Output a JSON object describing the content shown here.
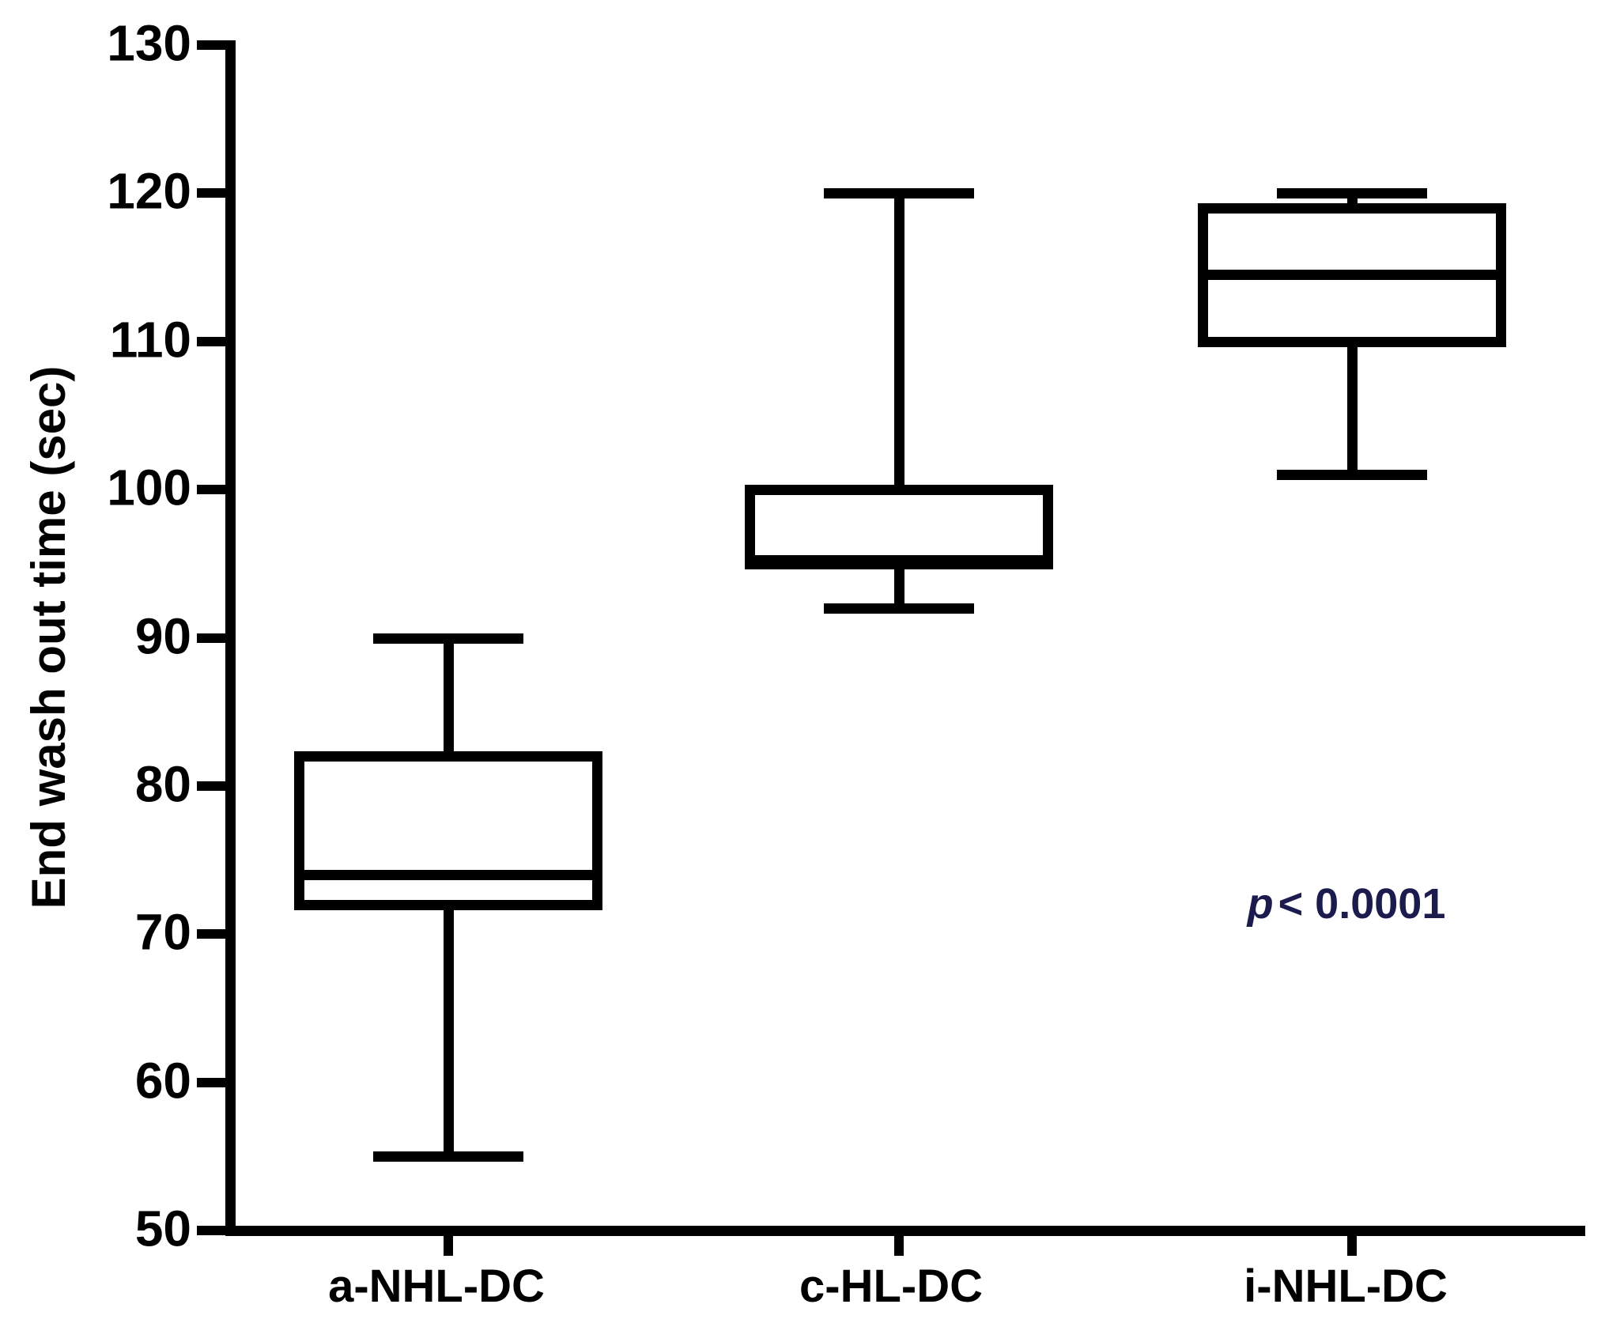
{
  "figure": {
    "p_symbol": "p",
    "p_rest": "< 0.0001",
    "p_color": "#1b1b4e",
    "ink_color": "#000000",
    "background_color": "#ffffff"
  },
  "chart_data": {
    "type": "box",
    "title": "",
    "xlabel": "",
    "ylabel": "End wash out time (sec)",
    "ylim": [
      50,
      130
    ],
    "yticks": [
      130,
      120,
      110,
      100,
      90,
      80,
      70,
      60,
      50
    ],
    "grid": false,
    "legend": "none",
    "categories": [
      "a-NHL-DC",
      "c-HL-DC",
      "i-NHL-DC"
    ],
    "series": [
      {
        "name": "a-NHL-DC",
        "min": 55,
        "q1": 72,
        "median": 74,
        "q3": 82,
        "max": 90
      },
      {
        "name": "c-HL-DC",
        "min": 92,
        "q1": 95,
        "median": 95,
        "q3": 100,
        "max": 120
      },
      {
        "name": "i-NHL-DC",
        "min": 101,
        "q1": 110,
        "median": 114.5,
        "q3": 119,
        "max": 120
      }
    ],
    "annotation": "p < 0.0001"
  }
}
